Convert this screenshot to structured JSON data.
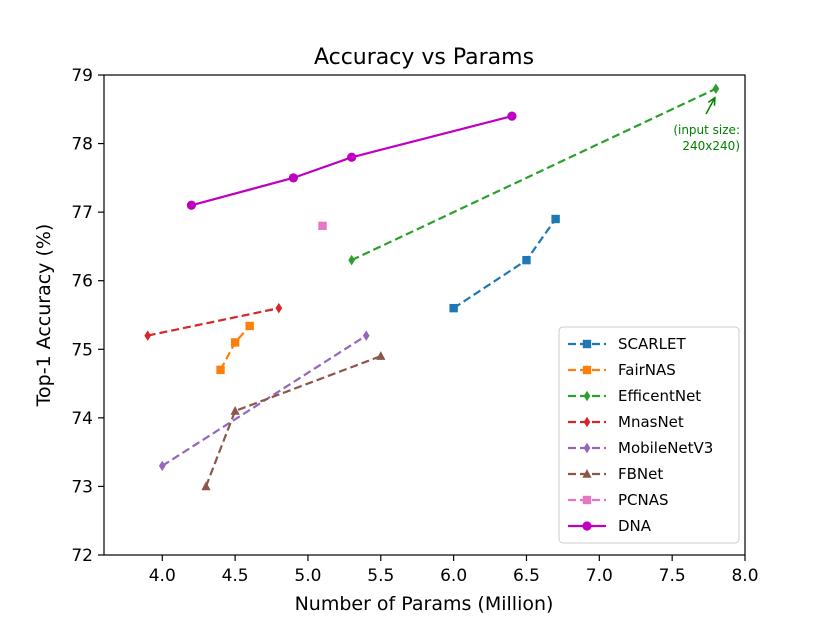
{
  "chart_data": {
    "type": "line",
    "title": "Accuracy vs Params",
    "xlabel": "Number of Params (Million)",
    "ylabel": "Top-1 Accuracy (%)",
    "xlim": [
      3.6,
      8.0
    ],
    "ylim": [
      72,
      79
    ],
    "xticks": [
      4.0,
      4.5,
      5.0,
      5.5,
      6.0,
      6.5,
      7.0,
      7.5,
      8.0
    ],
    "xtick_labels": [
      "4.0",
      "4.5",
      "5.0",
      "5.5",
      "6.0",
      "6.5",
      "7.0",
      "7.5",
      "8.0"
    ],
    "yticks": [
      72,
      73,
      74,
      75,
      76,
      77,
      78,
      79
    ],
    "ytick_labels": [
      "72",
      "73",
      "74",
      "75",
      "76",
      "77",
      "78",
      "79"
    ],
    "grid": false,
    "legend_position": "lower-right",
    "series": [
      {
        "name": "SCARLET",
        "color": "#1f77b4",
        "marker": "square",
        "line": "dashed",
        "points": [
          [
            6.0,
            75.6
          ],
          [
            6.5,
            76.3
          ],
          [
            6.7,
            76.9
          ]
        ]
      },
      {
        "name": "FairNAS",
        "color": "#ff7f0e",
        "marker": "square",
        "line": "dashed",
        "points": [
          [
            4.4,
            74.7
          ],
          [
            4.5,
            75.1
          ],
          [
            4.6,
            75.34
          ]
        ]
      },
      {
        "name": "EfficentNet",
        "color": "#2ca02c",
        "marker": "diamond",
        "line": "dashed",
        "points": [
          [
            5.3,
            76.3
          ],
          [
            7.8,
            78.8
          ]
        ]
      },
      {
        "name": "MnasNet",
        "color": "#d62728",
        "marker": "diamond",
        "line": "dashed",
        "points": [
          [
            3.9,
            75.2
          ],
          [
            4.8,
            75.6
          ]
        ]
      },
      {
        "name": "MobileNetV3",
        "color": "#9467bd",
        "marker": "diamond",
        "line": "dashed",
        "points": [
          [
            4.0,
            73.3
          ],
          [
            5.4,
            75.2
          ]
        ]
      },
      {
        "name": "FBNet",
        "color": "#8c564b",
        "marker": "triangle",
        "line": "dashed",
        "points": [
          [
            4.3,
            73.0
          ],
          [
            4.5,
            74.1
          ],
          [
            5.5,
            74.9
          ]
        ]
      },
      {
        "name": "PCNAS",
        "color": "#e377c2",
        "marker": "square",
        "line": "dashed",
        "points": [
          [
            5.1,
            76.8
          ]
        ]
      },
      {
        "name": "DNA",
        "color": "#c000c0",
        "marker": "circle",
        "line": "solid",
        "points": [
          [
            4.2,
            77.1
          ],
          [
            4.9,
            77.5
          ],
          [
            5.3,
            77.8
          ],
          [
            6.4,
            78.4
          ]
        ]
      }
    ],
    "annotations": [
      {
        "lines": [
          "(input size:",
          "240x240)"
        ],
        "color": "#008000",
        "target": [
          7.8,
          78.8
        ]
      }
    ]
  }
}
